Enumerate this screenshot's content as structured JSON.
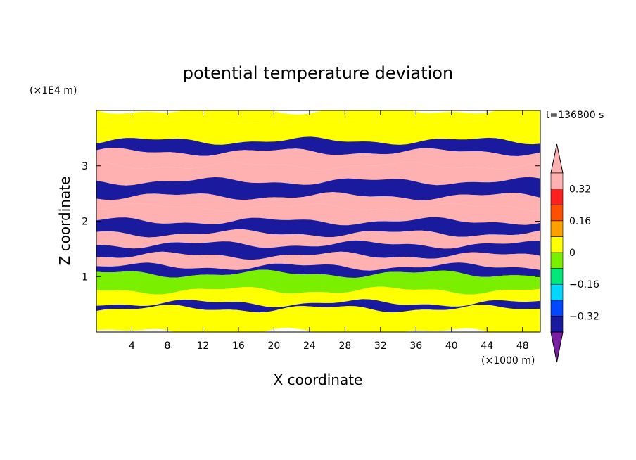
{
  "chart_data": {
    "type": "heatmap",
    "title": "potential temperature deviation",
    "xlabel": "X coordinate",
    "ylabel": "Z coordinate",
    "x_unit": "(×1000 m)",
    "y_unit": "(×1E4 m)",
    "time_label": "t=136800 s",
    "xlim": [
      0,
      50
    ],
    "ylim": [
      0,
      4
    ],
    "x_ticks": [
      4,
      8,
      12,
      16,
      20,
      24,
      28,
      32,
      36,
      40,
      44,
      48
    ],
    "y_ticks": [
      1,
      2,
      3
    ],
    "colorbar": {
      "levels": [
        -0.4,
        -0.32,
        -0.24,
        -0.16,
        -0.08,
        0,
        0.08,
        0.16,
        0.24,
        0.32,
        0.4
      ],
      "tick_labels": [
        "0.32",
        "0.16",
        "0",
        "−0.16",
        "−0.32"
      ],
      "tick_values": [
        0.32,
        0.16,
        0,
        -0.16,
        -0.32
      ],
      "colors": [
        "#7b1fa2",
        "#1a1a9e",
        "#0048ff",
        "#00d8ff",
        "#00e87a",
        "#7af000",
        "#ffff00",
        "#ffa000",
        "#ff5000",
        "#ff2020",
        "#ffb0b0"
      ],
      "extend": "both"
    },
    "bands": [
      {
        "z": [
          3.8,
          4.0
        ],
        "value": 0.02
      },
      {
        "z": [
          3.45,
          3.8
        ],
        "value": 0.05
      },
      {
        "z": [
          3.25,
          3.45
        ],
        "value": -0.38
      },
      {
        "z": [
          3.0,
          3.25
        ],
        "value": 0.42
      },
      {
        "z": [
          2.72,
          3.0
        ],
        "value": 0.43
      },
      {
        "z": [
          2.45,
          2.72
        ],
        "value": -0.4
      },
      {
        "z": [
          2.25,
          2.45
        ],
        "value": 0.42
      },
      {
        "z": [
          2.0,
          2.25
        ],
        "value": 0.4
      },
      {
        "z": [
          1.78,
          2.0
        ],
        "value": -0.38
      },
      {
        "z": [
          1.58,
          1.78
        ],
        "value": 0.42
      },
      {
        "z": [
          1.38,
          1.58
        ],
        "value": -0.36
      },
      {
        "z": [
          1.18,
          1.38
        ],
        "value": 0.41
      },
      {
        "z": [
          1.05,
          1.18
        ],
        "value": -0.34
      },
      {
        "z": [
          0.75,
          1.05
        ],
        "value": -0.02
      },
      {
        "z": [
          0.52,
          0.75
        ],
        "value": 0.03
      },
      {
        "z": [
          0.42,
          0.52
        ],
        "value": -0.36
      },
      {
        "z": [
          0.0,
          0.42
        ],
        "value": 0.0
      }
    ]
  }
}
